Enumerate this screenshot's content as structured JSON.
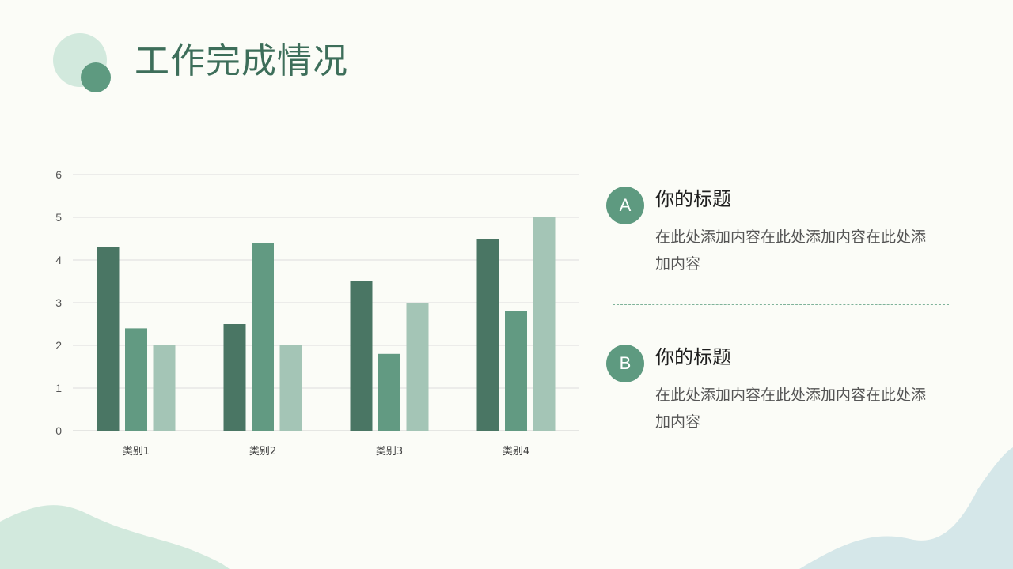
{
  "page": {
    "title": "工作完成情况"
  },
  "items": [
    {
      "badge": "A",
      "title": "你的标题",
      "description": "在此处添加内容在此处添加内容在此处添加内容"
    },
    {
      "badge": "B",
      "title": "你的标题",
      "description": "在此处添加内容在此处添加内容在此处添加内容"
    }
  ],
  "colors": {
    "accent_dark": "#4a7664",
    "accent_mid": "#629a82",
    "accent_light": "#a4c5b6",
    "title": "#3d6e5a",
    "background": "#fbfcf7"
  },
  "chart_data": {
    "type": "bar",
    "title": "",
    "xlabel": "",
    "ylabel": "",
    "categories": [
      "类别1",
      "类别2",
      "类别3",
      "类别4"
    ],
    "ylim": [
      0,
      6
    ],
    "yticks": [
      0,
      1,
      2,
      3,
      4,
      5,
      6
    ],
    "grid": true,
    "legend": "none",
    "series": [
      {
        "values": [
          4.3,
          2.5,
          3.5,
          4.5
        ],
        "color": "#4a7664"
      },
      {
        "values": [
          2.4,
          4.4,
          1.8,
          2.8
        ],
        "color": "#629a82"
      },
      {
        "values": [
          2.0,
          2.0,
          3.0,
          5.0
        ],
        "color": "#a4c5b6"
      }
    ]
  }
}
